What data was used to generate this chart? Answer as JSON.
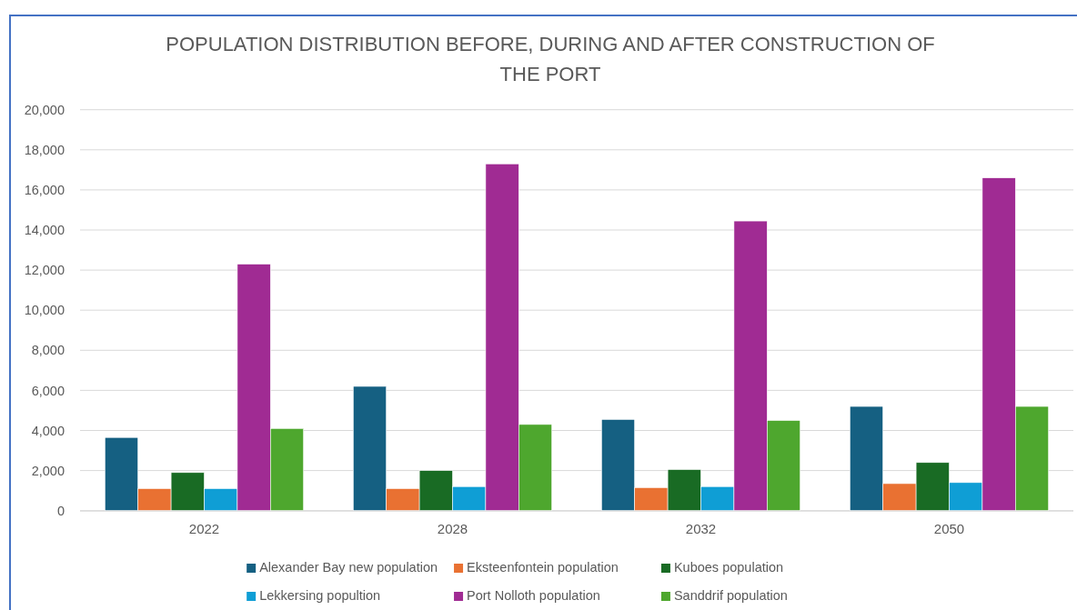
{
  "chart_data": {
    "type": "bar",
    "title": "POPULATION DISTRIBUTION BEFORE, DURING AND AFTER CONSTRUCTION OF THE PORT",
    "categories": [
      "2022",
      "2028",
      "2032",
      "2050"
    ],
    "series": [
      {
        "name": "Alexander Bay new population",
        "color": "#156082",
        "values": [
          3650,
          6200,
          4550,
          5200
        ]
      },
      {
        "name": "Eksteenfontein population",
        "color": "#e97132",
        "values": [
          1100,
          1100,
          1150,
          1350
        ]
      },
      {
        "name": "Kuboes population",
        "color": "#196b24",
        "values": [
          1900,
          2000,
          2050,
          2400
        ]
      },
      {
        "name": "Lekkersing popultion",
        "color": "#0f9ed5",
        "values": [
          1100,
          1200,
          1200,
          1400
        ]
      },
      {
        "name": "Port Nolloth population",
        "color": "#a02b93",
        "values": [
          12300,
          17300,
          14450,
          16600
        ]
      },
      {
        "name": "Sanddrif population",
        "color": "#4ea72e",
        "values": [
          4100,
          4300,
          4500,
          5200
        ]
      }
    ],
    "ylim": [
      0,
      20000
    ],
    "yticks": [
      {
        "value": 0,
        "label": "0"
      },
      {
        "value": 2000,
        "label": "2,000"
      },
      {
        "value": 4000,
        "label": "4,000"
      },
      {
        "value": 6000,
        "label": "6,000"
      },
      {
        "value": 8000,
        "label": "8,000"
      },
      {
        "value": 10000,
        "label": "10,000"
      },
      {
        "value": 12000,
        "label": "12,000"
      },
      {
        "value": 14000,
        "label": "14,000"
      },
      {
        "value": 16000,
        "label": "16,000"
      },
      {
        "value": 18000,
        "label": "18,000"
      },
      {
        "value": 20000,
        "label": "20,000"
      }
    ],
    "grid": "y",
    "legend": "bottom"
  }
}
